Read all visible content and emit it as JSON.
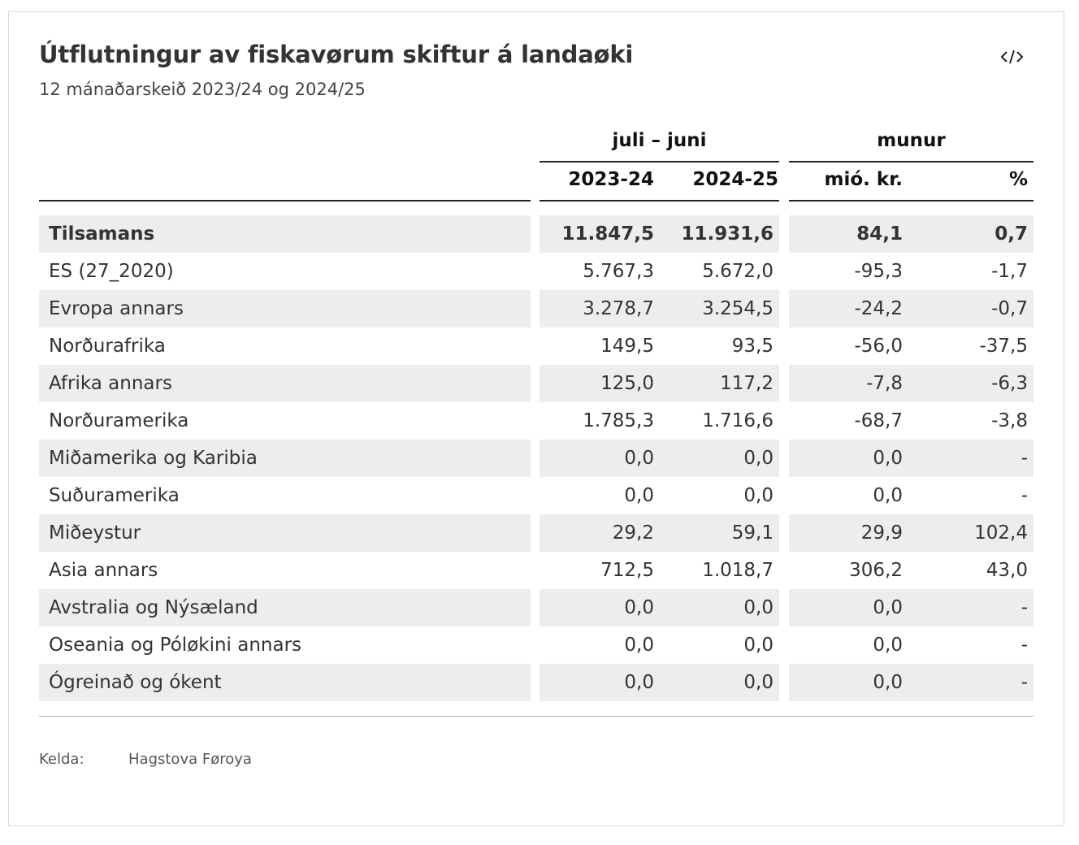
{
  "title": "Útflutningur av fiskavørum skiftur á landaøki",
  "subtitle": "12 mánaðarskeið 2023/24 og 2024/25",
  "embed_icon": "code-embed-icon",
  "colors": {
    "row_shade": "#ededed",
    "text": "#333333",
    "rule": "#222222"
  },
  "chart_data": {
    "type": "table",
    "column_groups": [
      "juli – juni",
      "munur"
    ],
    "columns": [
      "2023-24",
      "2024-25",
      "mió. kr.",
      "%"
    ],
    "rows": [
      {
        "label": "Tilsamans",
        "values": [
          "11.847,5",
          "11.931,6",
          "84,1",
          "0,7"
        ]
      },
      {
        "label": "ES (27_2020)",
        "values": [
          "5.767,3",
          "5.672,0",
          "-95,3",
          "-1,7"
        ]
      },
      {
        "label": "Evropa annars",
        "values": [
          "3.278,7",
          "3.254,5",
          "-24,2",
          "-0,7"
        ]
      },
      {
        "label": "Norðurafrika",
        "values": [
          "149,5",
          "93,5",
          "-56,0",
          "-37,5"
        ]
      },
      {
        "label": "Afrika annars",
        "values": [
          "125,0",
          "117,2",
          "-7,8",
          "-6,3"
        ]
      },
      {
        "label": "Norðuramerika",
        "values": [
          "1.785,3",
          "1.716,6",
          "-68,7",
          "-3,8"
        ]
      },
      {
        "label": "Miðamerika og Karibia",
        "values": [
          "0,0",
          "0,0",
          "0,0",
          "-"
        ]
      },
      {
        "label": "Suðuramerika",
        "values": [
          "0,0",
          "0,0",
          "0,0",
          "-"
        ]
      },
      {
        "label": "Miðeystur",
        "values": [
          "29,2",
          "59,1",
          "29,9",
          "102,4"
        ]
      },
      {
        "label": "Asia annars",
        "values": [
          "712,5",
          "1.018,7",
          "306,2",
          "43,0"
        ]
      },
      {
        "label": "Avstralia og Nýsæland",
        "values": [
          "0,0",
          "0,0",
          "0,0",
          "-"
        ]
      },
      {
        "label": "Oseania og Póløkini annars",
        "values": [
          "0,0",
          "0,0",
          "0,0",
          "-"
        ]
      },
      {
        "label": "Ógreinað og ókent",
        "values": [
          "0,0",
          "0,0",
          "0,0",
          "-"
        ]
      }
    ]
  },
  "footer": {
    "source_label": "Kelda:",
    "source_value": "Hagstova Føroya"
  }
}
